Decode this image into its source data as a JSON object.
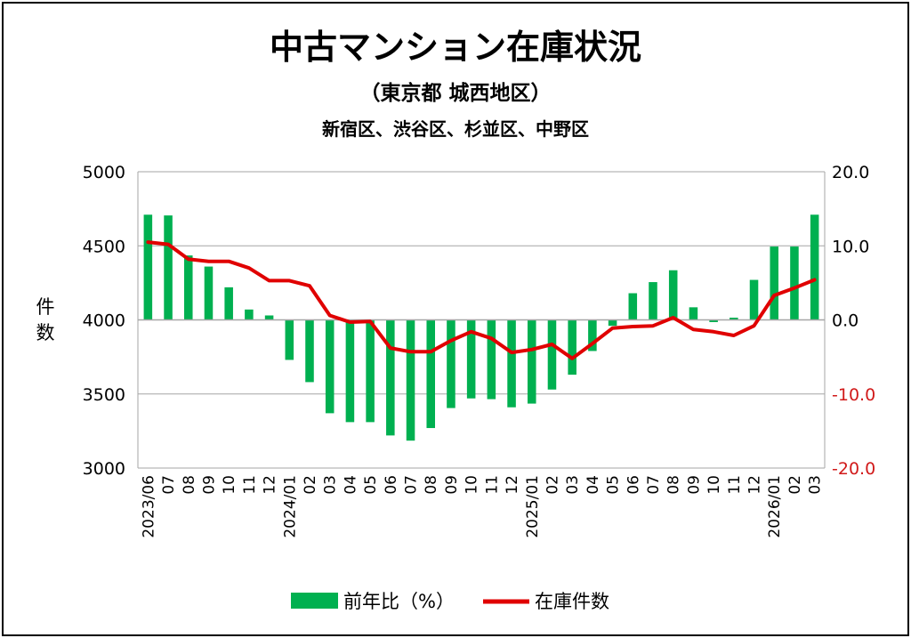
{
  "chart_data": {
    "type": "bar+line",
    "title": "中古マンション在庫状況",
    "subtitle1": "（東京都 城西地区）",
    "subtitle2": "新宿区、渋谷区、杉並区、中野区",
    "ylabel_left_lines": [
      "件",
      "数"
    ],
    "categories": [
      "2023/06",
      "07",
      "08",
      "09",
      "10",
      "11",
      "12",
      "2024/01",
      "02",
      "03",
      "04",
      "05",
      "06",
      "07",
      "08",
      "09",
      "10",
      "11",
      "12",
      "2025/01",
      "02",
      "03",
      "04",
      "05",
      "06",
      "07",
      "08",
      "09",
      "10",
      "11",
      "12",
      "2026/01",
      "02",
      "03"
    ],
    "bar_series": {
      "name": "前年比（%）",
      "color": "#00b050",
      "axis": "right",
      "values": [
        14.2,
        14.1,
        8.7,
        7.2,
        4.4,
        1.4,
        0.6,
        -5.4,
        -8.4,
        -12.6,
        -13.8,
        -13.8,
        -15.6,
        -16.3,
        -14.6,
        -11.9,
        -10.6,
        -10.7,
        -11.8,
        -11.3,
        -9.4,
        -7.4,
        -4.2,
        -0.8,
        3.6,
        5.1,
        6.7,
        1.7,
        -0.3,
        0.3,
        5.4,
        9.9,
        9.9,
        14.2
      ]
    },
    "line_series": {
      "name": "在庫件数",
      "color": "#e00000",
      "axis": "left",
      "values": [
        4525,
        4510,
        4410,
        4395,
        4395,
        4350,
        4265,
        4265,
        4230,
        4030,
        3985,
        3990,
        3810,
        3785,
        3785,
        3860,
        3920,
        3875,
        3780,
        3800,
        3835,
        3740,
        3840,
        3945,
        3955,
        3960,
        4015,
        3935,
        3920,
        3895,
        3960,
        4165,
        4215,
        4270
      ]
    },
    "x_tick_labels": [
      "2023/06",
      "07",
      "08",
      "09",
      "10",
      "11",
      "12",
      "2024/01",
      "02",
      "03",
      "04",
      "05",
      "06",
      "07",
      "08",
      "09",
      "10",
      "11",
      "12",
      "2025/01",
      "02",
      "03",
      "04",
      "05",
      "06",
      "07",
      "08",
      "09",
      "10",
      "11",
      "12",
      "2026/01",
      "02",
      "03"
    ],
    "y_left": {
      "min": 3000,
      "max": 5000,
      "ticks": [
        "3000",
        "3500",
        "4000",
        "4500",
        "5000"
      ]
    },
    "y_right": {
      "min": -20.0,
      "max": 20.0,
      "ticks": [
        "-20.0",
        "-10.0",
        "0.0",
        "10.0",
        "20.0"
      ],
      "negative_color": "#d11a1a"
    },
    "legend": {
      "position": "bottom",
      "bar_label": "前年比（%）",
      "line_label": "在庫件数"
    }
  }
}
